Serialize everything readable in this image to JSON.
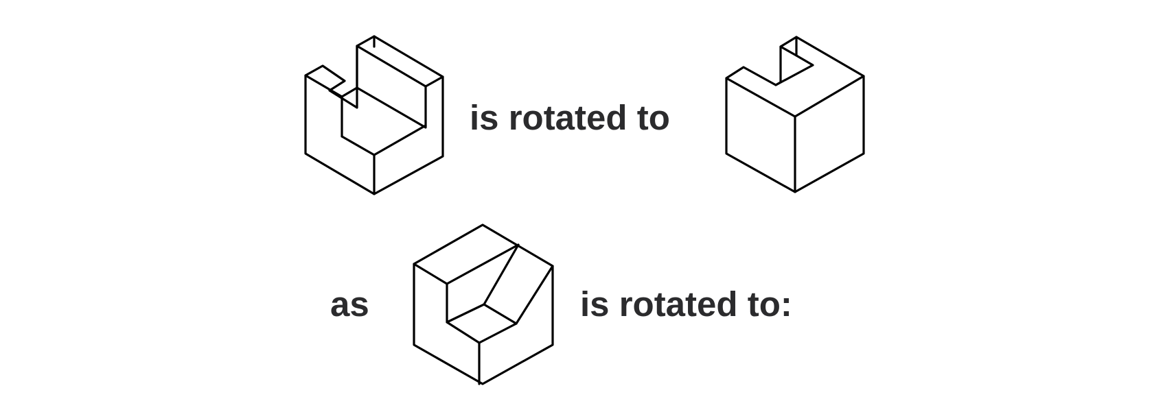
{
  "analogy": {
    "row1_relation": "is rotated to",
    "row2_prefix": "as",
    "row2_relation": "is rotated to:"
  },
  "figures": [
    {
      "name": "figure-a",
      "description": "u-shaped-block"
    },
    {
      "name": "figure-b",
      "description": "u-shaped-block-rotated"
    },
    {
      "name": "figure-c",
      "description": "notched-block"
    }
  ],
  "colors": {
    "text": "#2b2b2d",
    "stroke": "#000000",
    "background": "#ffffff"
  }
}
